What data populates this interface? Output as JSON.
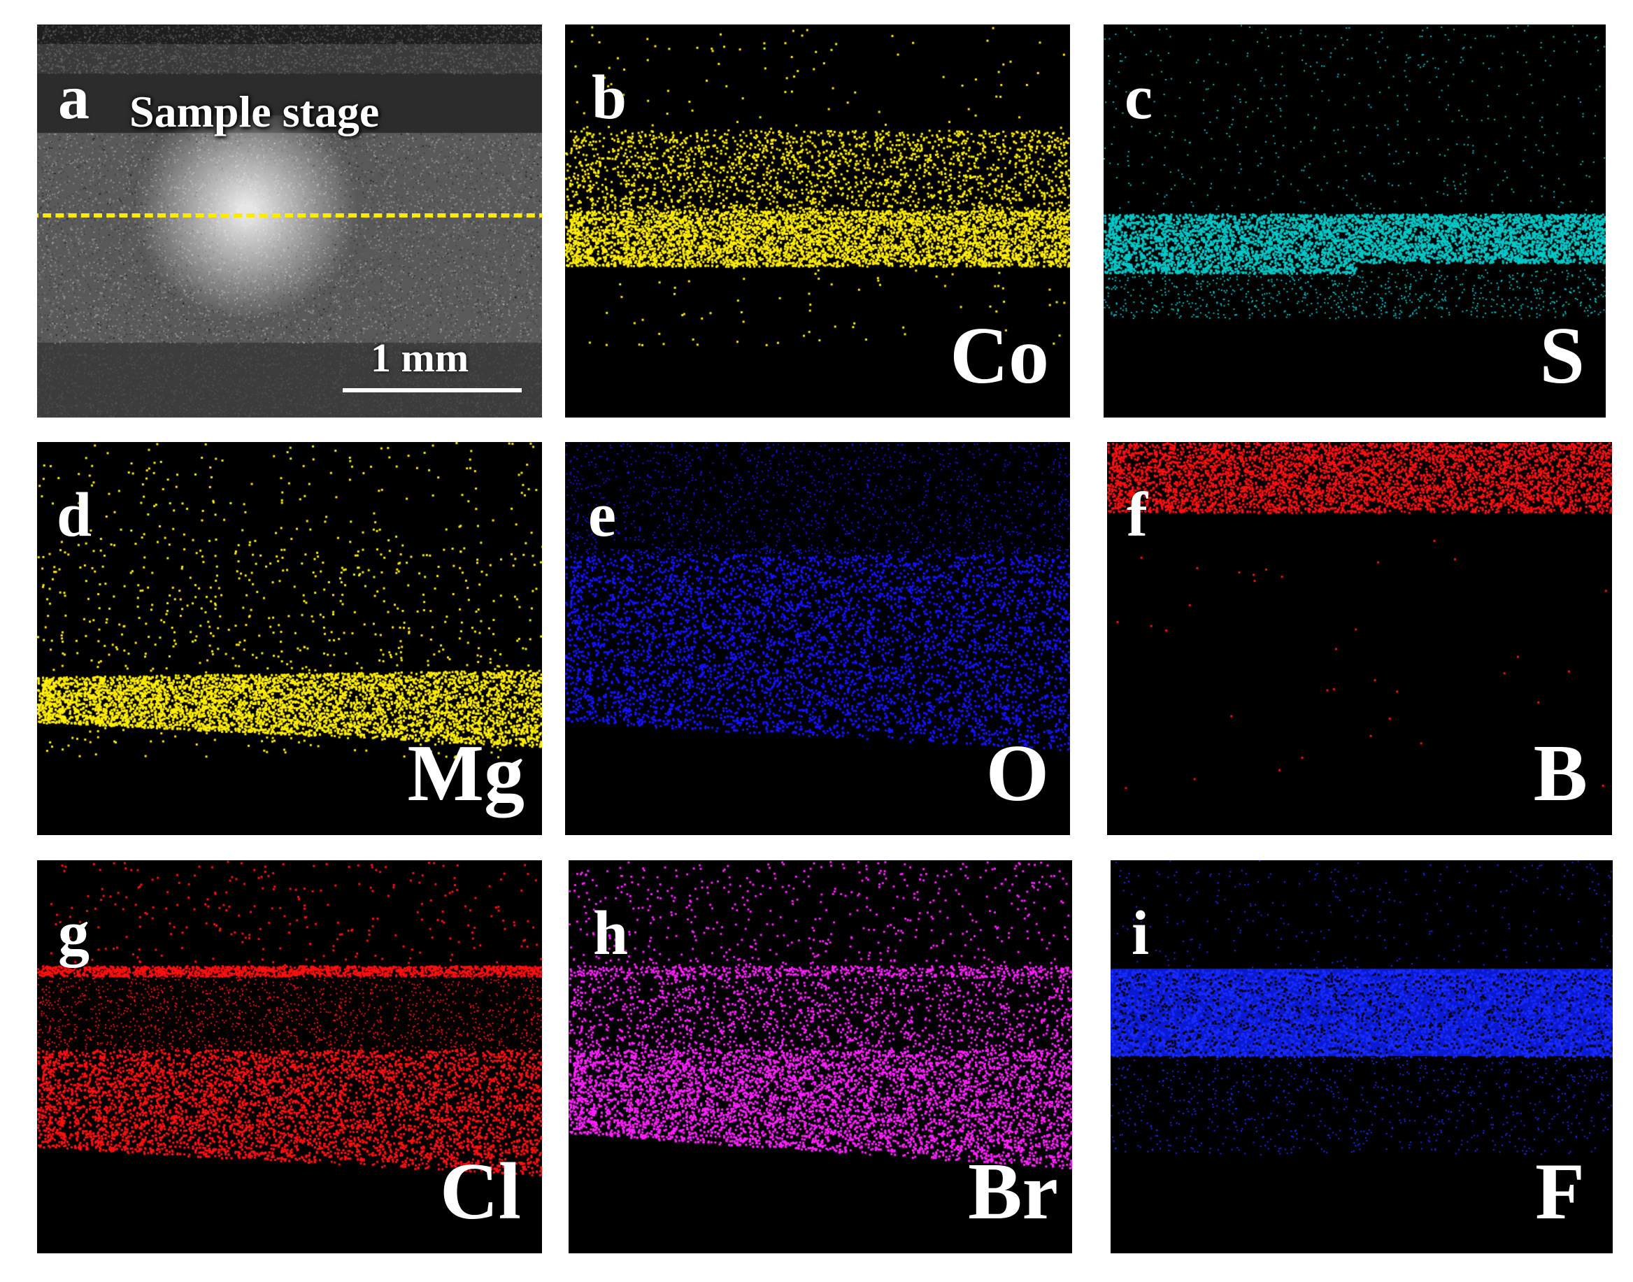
{
  "panels": [
    {
      "id": "a",
      "label": "a",
      "element": "",
      "color": "#c8c8c8"
    },
    {
      "id": "b",
      "label": "b",
      "element": "Co",
      "color": "#ffee00"
    },
    {
      "id": "c",
      "label": "c",
      "element": "S",
      "color": "#00c8c8"
    },
    {
      "id": "d",
      "label": "d",
      "element": "Mg",
      "color": "#ffee00"
    },
    {
      "id": "e",
      "label": "e",
      "element": "O",
      "color": "#1414ff"
    },
    {
      "id": "f",
      "label": "f",
      "element": "B",
      "color": "#ff1010"
    },
    {
      "id": "g",
      "label": "g",
      "element": "Cl",
      "color": "#ff1010"
    },
    {
      "id": "h",
      "label": "h",
      "element": "Br",
      "color": "#ff20ff"
    },
    {
      "id": "i",
      "label": "i",
      "element": "F",
      "color": "#1a2cff"
    }
  ],
  "sem": {
    "stage_label": "Sample stage",
    "scale_bar_label": "1 mm",
    "dashed_line_color": "#ffeb00"
  }
}
